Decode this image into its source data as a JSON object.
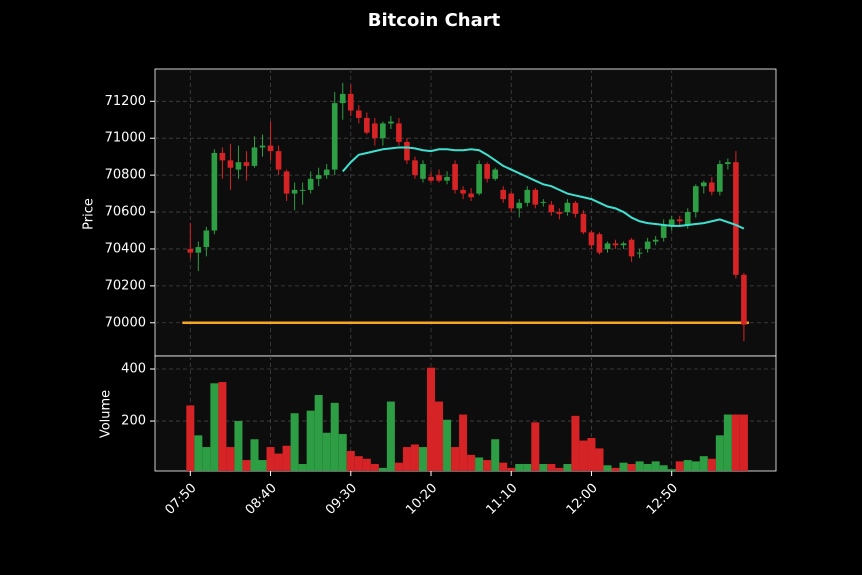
{
  "chart_data": [
    {
      "type": "candlestick",
      "title": "Bitcoin Chart",
      "ylabel": "Price",
      "x": [
        "07:50",
        "07:55",
        "08:00",
        "08:05",
        "08:10",
        "08:15",
        "08:20",
        "08:25",
        "08:30",
        "08:35",
        "08:40",
        "08:45",
        "08:50",
        "08:55",
        "09:00",
        "09:05",
        "09:10",
        "09:15",
        "09:20",
        "09:25",
        "09:30",
        "09:35",
        "09:40",
        "09:45",
        "09:50",
        "09:55",
        "10:00",
        "10:05",
        "10:10",
        "10:15",
        "10:20",
        "10:25",
        "10:30",
        "10:35",
        "10:40",
        "10:45",
        "10:50",
        "10:55",
        "11:00",
        "11:05",
        "11:10",
        "11:15",
        "11:20",
        "11:25",
        "11:30",
        "11:35",
        "11:40",
        "11:45",
        "11:50",
        "11:55",
        "12:00",
        "12:05",
        "12:10",
        "12:15",
        "12:20",
        "12:25",
        "12:30",
        "12:35",
        "12:40",
        "12:45",
        "12:50",
        "12:55",
        "13:00",
        "13:05",
        "13:10",
        "13:15",
        "13:20",
        "13:25",
        "13:30",
        "13:35"
      ],
      "open": [
        70400,
        70380,
        70410,
        70500,
        70920,
        70880,
        70830,
        70870,
        70850,
        70950,
        70960,
        70930,
        70820,
        70700,
        70720,
        70720,
        70780,
        70800,
        70830,
        71190,
        71240,
        71150,
        71110,
        71080,
        71000,
        71080,
        71080,
        70980,
        70880,
        70780,
        70790,
        70800,
        70770,
        70860,
        70720,
        70700,
        70700,
        70860,
        70780,
        70720,
        70700,
        70620,
        70650,
        70720,
        70650,
        70640,
        70600,
        70600,
        70650,
        70590,
        70490,
        70480,
        70400,
        70430,
        70420,
        70450,
        70380,
        70400,
        70440,
        70460,
        70530,
        70560,
        70530,
        70600,
        70740,
        70760,
        70710,
        70860,
        70870,
        70260
      ],
      "high": [
        70540,
        70440,
        70520,
        70940,
        70950,
        70970,
        70960,
        70930,
        71010,
        71020,
        71090,
        70960,
        70830,
        70760,
        70760,
        70820,
        70840,
        70860,
        71250,
        71300,
        71290,
        71180,
        71140,
        71110,
        71090,
        71120,
        71110,
        71000,
        70900,
        70880,
        70820,
        70830,
        70820,
        70880,
        70740,
        70730,
        70880,
        70870,
        70840,
        70740,
        70710,
        70670,
        70740,
        70730,
        70670,
        70660,
        70620,
        70670,
        70660,
        70610,
        70500,
        70490,
        70440,
        70450,
        70440,
        70460,
        70400,
        70460,
        70470,
        70560,
        70580,
        70580,
        70620,
        70750,
        70770,
        70790,
        70880,
        70890,
        70930,
        70270
      ],
      "low": [
        70350,
        70280,
        70360,
        70480,
        70780,
        70720,
        70780,
        70770,
        70840,
        70900,
        70880,
        70800,
        70660,
        70610,
        70640,
        70700,
        70740,
        70780,
        70800,
        71100,
        71120,
        71080,
        71020,
        70960,
        70960,
        71050,
        70960,
        70860,
        70780,
        70760,
        70760,
        70760,
        70750,
        70700,
        70670,
        70660,
        70690,
        70760,
        70770,
        70650,
        70600,
        70570,
        70630,
        70620,
        70630,
        70580,
        70560,
        70580,
        70570,
        70480,
        70400,
        70370,
        70380,
        70400,
        70400,
        70330,
        70350,
        70380,
        70420,
        70440,
        70500,
        70520,
        70510,
        70570,
        70700,
        70690,
        70690,
        70830,
        70240,
        69900
      ],
      "close": [
        70380,
        70410,
        70500,
        70920,
        70880,
        70840,
        70870,
        70850,
        70950,
        70960,
        70930,
        70830,
        70700,
        70720,
        70720,
        70780,
        70800,
        70830,
        71190,
        71240,
        71150,
        71110,
        71030,
        71000,
        71080,
        71090,
        70980,
        70880,
        70800,
        70860,
        70770,
        70770,
        70790,
        70720,
        70700,
        70680,
        70860,
        70780,
        70830,
        70670,
        70620,
        70650,
        70720,
        70640,
        70655,
        70600,
        70590,
        70650,
        70590,
        70490,
        70420,
        70380,
        70430,
        70420,
        70430,
        70360,
        70380,
        70440,
        70450,
        70530,
        70560,
        70550,
        70600,
        70740,
        70760,
        70710,
        70860,
        70870,
        70260,
        69990
      ],
      "up_color": "#2e9e44",
      "down_color": "#d62326",
      "sma": {
        "color": "#40e0d0",
        "values": [
          null,
          null,
          null,
          null,
          null,
          null,
          null,
          null,
          null,
          null,
          null,
          null,
          null,
          null,
          null,
          null,
          null,
          null,
          null,
          70820,
          70870,
          70910,
          70920,
          70930,
          70940,
          70945,
          70950,
          70950,
          70945,
          70935,
          70930,
          70940,
          70940,
          70935,
          70935,
          70940,
          70935,
          70910,
          70880,
          70850,
          70830,
          70810,
          70790,
          70770,
          70750,
          70740,
          70720,
          70700,
          70690,
          70680,
          70670,
          70650,
          70630,
          70620,
          70600,
          70570,
          70550,
          70540,
          70535,
          70530,
          70525,
          70525,
          70530,
          70535,
          70540,
          70550,
          70560,
          70545,
          70530,
          70510
        ]
      },
      "hline": {
        "value": 70000,
        "color": "#f5a623"
      },
      "xlim": [
        "07:28",
        "13:55"
      ],
      "ylim": [
        69820,
        71375
      ],
      "yticks": [
        70000,
        70200,
        70400,
        70600,
        70800,
        71000,
        71200
      ],
      "grid": true
    },
    {
      "type": "volume",
      "ylabel": "Volume",
      "values": [
        260,
        145,
        100,
        345,
        350,
        100,
        200,
        50,
        130,
        50,
        100,
        75,
        105,
        230,
        35,
        240,
        300,
        155,
        270,
        150,
        85,
        65,
        55,
        35,
        20,
        275,
        40,
        100,
        110,
        100,
        405,
        275,
        205,
        100,
        225,
        70,
        60,
        50,
        130,
        40,
        20,
        35,
        35,
        195,
        35,
        35,
        20,
        35,
        220,
        125,
        135,
        95,
        30,
        20,
        40,
        35,
        45,
        35,
        45,
        30,
        15,
        45,
        50,
        45,
        65,
        55,
        145,
        225,
        225,
        225
      ],
      "ylim": [
        8,
        450
      ],
      "yticks": [
        200,
        400
      ],
      "xticks": [
        "07:50",
        "08:40",
        "09:30",
        "10:20",
        "11:10",
        "12:00",
        "12:50"
      ],
      "grid": true
    }
  ]
}
